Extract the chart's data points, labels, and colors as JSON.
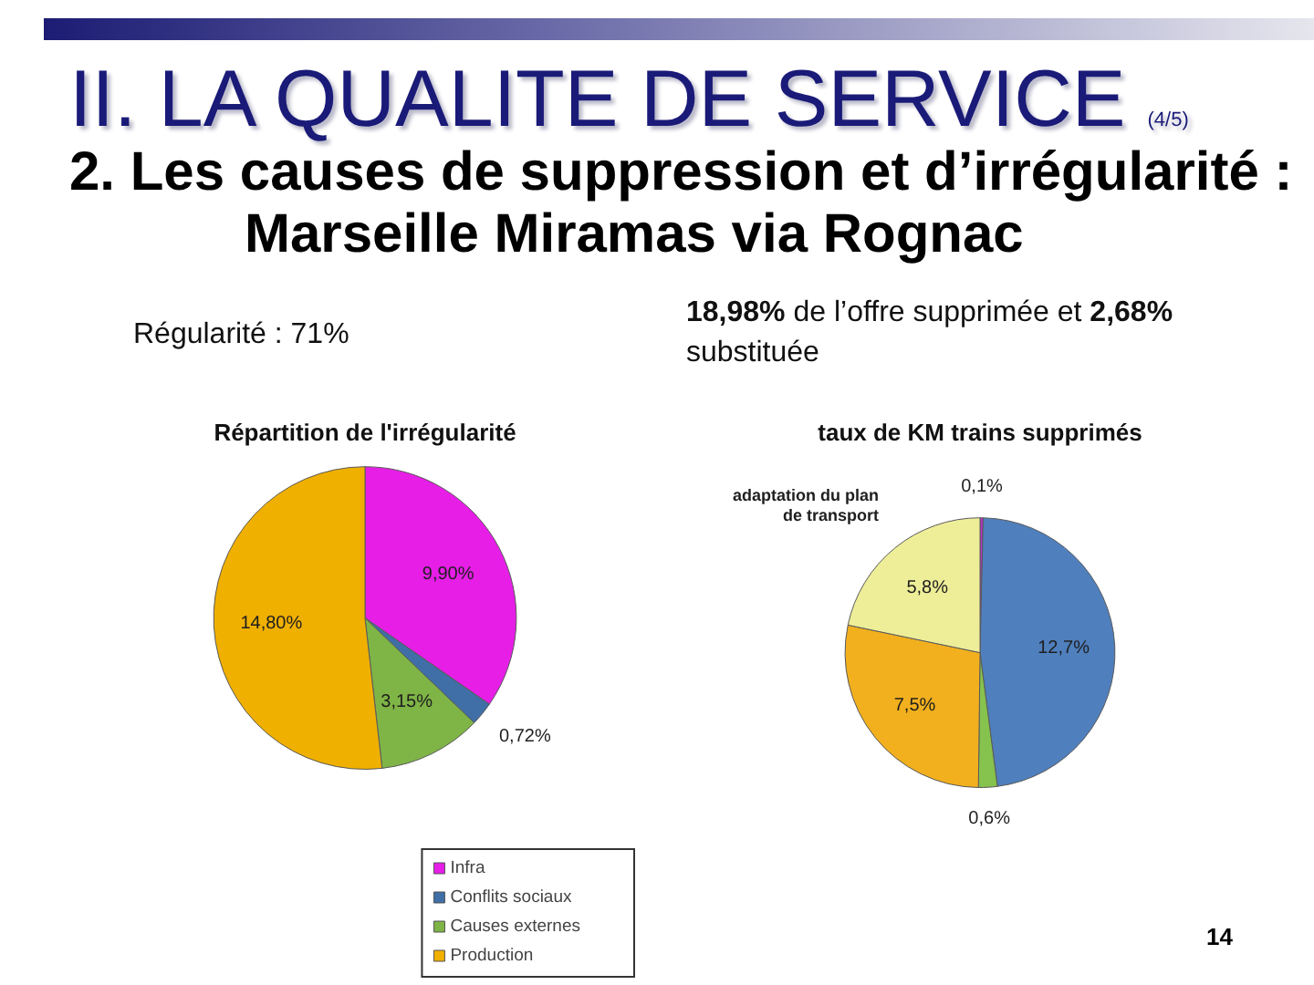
{
  "chart_data": [
    {
      "type": "other",
      "title": "II. LA QUALITE DE SERVICE",
      "subtitle": "2. Les causes de suppression et d’irrégularité : Marseille Miramas via Rognac",
      "annotations": [
        "(4/5)",
        "14"
      ]
    },
    {
      "type": "pie",
      "title": "Répartition de l'irrégularité",
      "categories": [
        "Infra",
        "Conflits sociaux",
        "Causes externes",
        "Production"
      ],
      "values": [
        9.9,
        0.72,
        3.15,
        14.8
      ],
      "value_labels": [
        "9,90%",
        "0,72%",
        "3,15%",
        "14,80%"
      ],
      "colors": [
        "#e61ee6",
        "#3f6fa6",
        "#7fb446",
        "#f0b000"
      ],
      "legend": "bottom right",
      "annotations": [
        "Régularité : 71%"
      ]
    },
    {
      "type": "pie",
      "title": "taux de KM trains supprimés",
      "categories": [
        null,
        null,
        null,
        null,
        "adaptation du plan de transport"
      ],
      "values": [
        0.1,
        12.7,
        0.6,
        7.5,
        5.8
      ],
      "value_labels": [
        "0,1%",
        "12,7%",
        "0,6%",
        "7,5%",
        "5,8%"
      ],
      "colors": [
        "#b82fc4",
        "#4f7fbd",
        "#86c24e",
        "#f2b01e",
        "#eeee99"
      ],
      "annotations": [
        "18,98% de l’offre supprimée et 2,68% substituée"
      ]
    }
  ]
}
